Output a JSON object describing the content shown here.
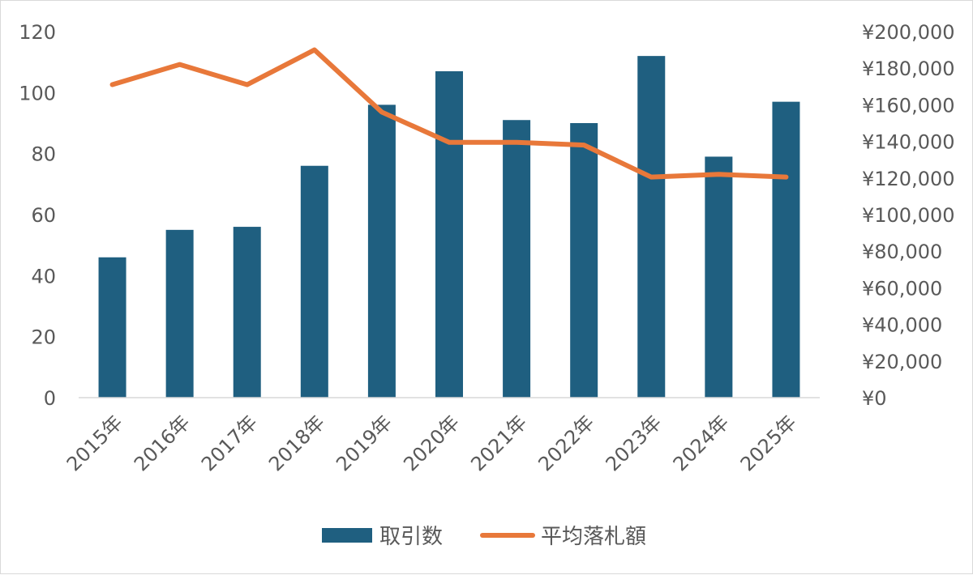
{
  "chart_data": {
    "type": "bar+line",
    "categories": [
      "2015年",
      "2016年",
      "2017年",
      "2018年",
      "2019年",
      "2020年",
      "2021年",
      "2022年",
      "2023年",
      "2024年",
      "2025年"
    ],
    "series": [
      {
        "name": "取引数",
        "type": "bar",
        "axis": "left",
        "color": "#1f5f80",
        "values": [
          46,
          55,
          56,
          76,
          96,
          107,
          91,
          90,
          112,
          79,
          97
        ]
      },
      {
        "name": "平均落札額",
        "type": "line",
        "axis": "right",
        "color": "#e8783a",
        "values": [
          171000,
          182000,
          171000,
          190000,
          156000,
          139500,
          139500,
          138000,
          120500,
          122000,
          120500
        ]
      }
    ],
    "y_left": {
      "min": 0,
      "max": 120,
      "step": 20,
      "tick_labels": [
        "0",
        "20",
        "40",
        "60",
        "80",
        "100",
        "120"
      ]
    },
    "y_right": {
      "min": 0,
      "max": 200000,
      "step": 20000,
      "tick_labels": [
        "¥0",
        "¥20,000",
        "¥40,000",
        "¥60,000",
        "¥80,000",
        "¥100,000",
        "¥120,000",
        "¥140,000",
        "¥160,000",
        "¥180,000",
        "¥200,000"
      ]
    },
    "grid": false,
    "legend_position": "bottom",
    "title": ""
  }
}
